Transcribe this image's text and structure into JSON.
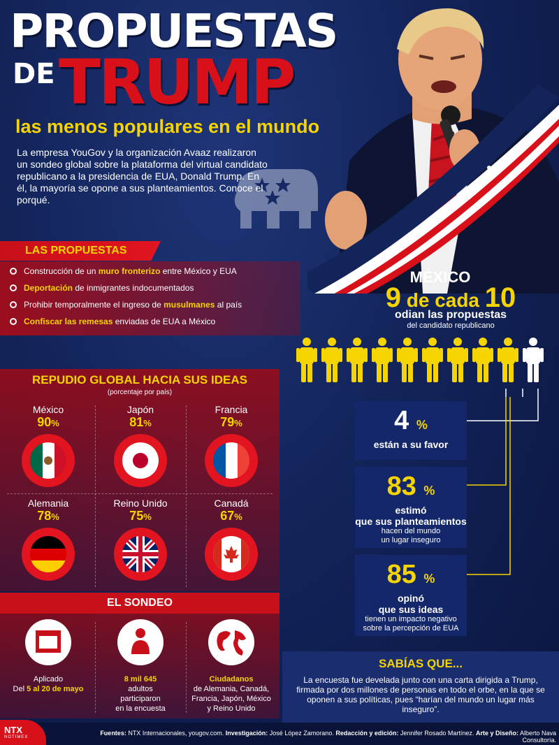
{
  "header": {
    "title_line1": "PROPUESTAS",
    "title_de": "DE",
    "title_line2": "TRUMP",
    "subtitle": "las menos populares en el mundo",
    "intro": "La empresa YouGov y la organización Avaaz realizaron un sondeo global sobre la plataforma del virtual candidato republicano a la presidencia de EUA, Donald Trump. En él, la mayoría se opone a sus planteamientos. Conoce el porqué."
  },
  "proposals": {
    "title": "LAS PROPUESTAS",
    "items": [
      {
        "pre": "Construcción de un ",
        "hl": "muro fronterizo",
        "post": " entre México y EUA"
      },
      {
        "pre": "",
        "hl": "Deportación",
        "post": " de inmigrantes indocumentados"
      },
      {
        "pre": "Prohibir temporalmente el ingreso de ",
        "hl": "musulmanes",
        "post": " al país"
      },
      {
        "pre": "",
        "hl": "Confiscar las remesas",
        "post": " enviadas de EUA a México"
      }
    ]
  },
  "repudio": {
    "title": "REPUDIO GLOBAL HACIA SUS IDEAS",
    "subtitle": "(porcentaje por país)",
    "countries": [
      {
        "name": "México",
        "value": "90",
        "flag": "mexico-flag"
      },
      {
        "name": "Japón",
        "value": "81",
        "flag": "japan-flag"
      },
      {
        "name": "Francia",
        "value": "79",
        "flag": "france-flag"
      },
      {
        "name": "Alemania",
        "value": "78",
        "flag": "germany-flag"
      },
      {
        "name": "Reino Unido",
        "value": "75",
        "flag": "uk-flag"
      },
      {
        "name": "Canadá",
        "value": "67",
        "flag": "canada-flag"
      }
    ],
    "pct_sign": "%"
  },
  "sondeo": {
    "title": "EL SONDEO",
    "col1": {
      "pre": "Aplicado",
      "pre2": "Del ",
      "hl": "5 al 20 de mayo",
      "icon": "calendar-icon"
    },
    "col2": {
      "hl": "8 mil 645",
      "post1": "adultos",
      "post2": "participaron",
      "post3": "en la encuesta",
      "icon": "person-icon"
    },
    "col3": {
      "hl": "Ciudadanos",
      "l1": "de Alemania, Canadá,",
      "l2": "Francia, Japón, México",
      "l3": "y Reino Unido",
      "icon": "globe-icon"
    }
  },
  "mexico": {
    "label": "MÉXICO",
    "num1": "9",
    "mid": " de cada ",
    "num2": "10",
    "line1": "odian las propuestas",
    "line2": "del candidato republicano",
    "people_total": 10,
    "people_highlighted": 9,
    "stats": [
      {
        "value": "4",
        "sign": "%",
        "l1": "están a su favor",
        "l2a": "",
        "l2b": ""
      },
      {
        "value": "83",
        "sign": "%",
        "l1": "estimó",
        "l1b": "que sus planteamientos",
        "l2a": "hacen del mundo",
        "l2b": "un lugar inseguro"
      },
      {
        "value": "85",
        "sign": "%",
        "l1": "opinó",
        "l1b": "que sus ideas",
        "l2a": "tienen un impacto negativo",
        "l2b": "sobre la percepción de EUA"
      }
    ]
  },
  "sabias": {
    "title": "SABÍAS QUE...",
    "text": "La encuesta fue develada junto con una carta dirigida a Trump, firmada por dos millones de personas en todo el orbe, en la que se oponen a sus políticas, pues “harían del mundo un lugar más inseguro”."
  },
  "footer": {
    "fuentes_label": "Fuentes:",
    "fuentes": " NTX Internacionales, yougov.com.",
    "inv_label": "Investigación:",
    "inv": " José López Zamorano.",
    "red_label": "Redacción y edición:",
    "red": " Jennifer Rosado Martínez.",
    "arte_label": "Arte y Diseño:",
    "arte": " Alberto Nava Consultoría.",
    "logo": "NTX",
    "logo_sub": "NOTIMEX"
  },
  "colors": {
    "accent_yellow": "#f6d400",
    "accent_red": "#d8101a",
    "navy": "#13245a"
  }
}
